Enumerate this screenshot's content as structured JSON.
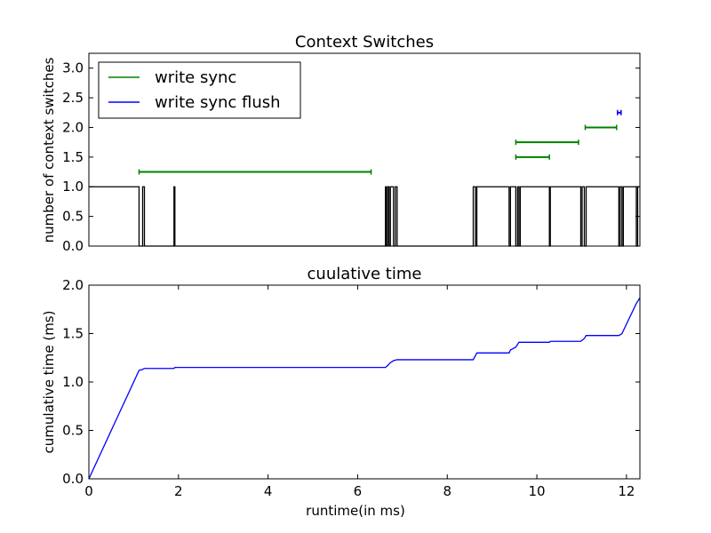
{
  "colors": {
    "step": "#000000",
    "write_sync": "#008000",
    "write_sync_flush": "#0000ff",
    "cumulative": "#0000ff",
    "frame": "#000000",
    "background": "#ffffff"
  },
  "chart_data": [
    {
      "type": "line",
      "title": "Context Switches",
      "xlabel": "",
      "ylabel": "number of context switches",
      "xlim": [
        0,
        12.3
      ],
      "ylim": [
        0,
        3.25
      ],
      "yticks": [
        0.0,
        0.5,
        1.0,
        1.5,
        2.0,
        2.5,
        3.0
      ],
      "ytick_labels": [
        "0.0",
        "0.5",
        "1.0",
        "1.5",
        "2.0",
        "2.5",
        "3.0"
      ],
      "xticks_shown": false,
      "legend_position": "top-left",
      "grid": false,
      "step_series": {
        "x": [
          0,
          1.12,
          1.12,
          1.2,
          1.2,
          1.24,
          1.24,
          1.9,
          1.9,
          1.92,
          1.92,
          6.62,
          6.62,
          6.64,
          6.64,
          6.67,
          6.67,
          6.7,
          6.7,
          6.73,
          6.73,
          6.8,
          6.8,
          6.84,
          6.84,
          6.88,
          6.88,
          8.58,
          8.58,
          8.63,
          8.63,
          8.66,
          8.66,
          9.38,
          9.38,
          9.41,
          9.41,
          9.53,
          9.53,
          9.57,
          9.57,
          9.6,
          9.6,
          9.63,
          9.63,
          10.28,
          10.28,
          10.3,
          10.3,
          10.98,
          10.98,
          11.01,
          11.01,
          11.06,
          11.06,
          11.1,
          11.1,
          11.83,
          11.83,
          11.86,
          11.86,
          11.9,
          11.9,
          11.93,
          11.93,
          12.22,
          12.22,
          12.25,
          12.25,
          12.3
        ],
        "y": [
          1,
          1,
          0,
          0,
          1,
          1,
          0,
          0,
          1,
          1,
          0,
          0,
          1,
          1,
          0,
          0,
          1,
          1,
          0,
          0,
          1,
          1,
          0,
          0,
          1,
          1,
          0,
          0,
          1,
          1,
          0,
          0,
          1,
          1,
          0,
          0,
          1,
          1,
          0,
          0,
          1,
          1,
          0,
          0,
          1,
          1,
          0,
          0,
          1,
          1,
          0,
          0,
          1,
          1,
          0,
          0,
          1,
          1,
          0,
          0,
          1,
          1,
          0,
          0,
          1,
          1,
          0,
          0,
          1,
          1
        ]
      },
      "series": [
        {
          "name": "write sync",
          "kind": "interval",
          "intervals": [
            {
              "start": 1.12,
              "end": 6.3,
              "y": 1.25
            },
            {
              "start": 9.53,
              "end": 10.28,
              "y": 1.5
            },
            {
              "start": 9.53,
              "end": 10.93,
              "y": 1.75
            },
            {
              "start": 11.08,
              "end": 11.78,
              "y": 2.0
            }
          ]
        },
        {
          "name": "write sync flush",
          "kind": "interval",
          "intervals": [
            {
              "start": 11.8,
              "end": 11.88,
              "y": 2.25
            }
          ]
        }
      ]
    },
    {
      "type": "line",
      "title": "cuulative time",
      "xlabel": "runtime(in ms)",
      "ylabel": "cumulative time (ms)",
      "xlim": [
        0,
        12.3
      ],
      "ylim": [
        0,
        2.0
      ],
      "xticks": [
        0,
        2,
        4,
        6,
        8,
        10,
        12
      ],
      "xtick_labels": [
        "0",
        "2",
        "4",
        "6",
        "8",
        "10",
        "12"
      ],
      "yticks": [
        0.0,
        0.5,
        1.0,
        1.5,
        2.0
      ],
      "ytick_labels": [
        "0.0",
        "0.5",
        "1.0",
        "1.5",
        "2.0"
      ],
      "grid": false,
      "series": [
        {
          "x": [
            0,
            1.12,
            1.2,
            1.24,
            1.9,
            1.92,
            6.62,
            6.67,
            6.73,
            6.8,
            6.88,
            8.58,
            8.66,
            9.38,
            9.41,
            9.53,
            9.6,
            10.28,
            10.3,
            10.98,
            11.06,
            11.1,
            11.83,
            11.9,
            11.93,
            12.22,
            12.3
          ],
          "y": [
            0,
            1.12,
            1.13,
            1.14,
            1.14,
            1.15,
            1.15,
            1.17,
            1.2,
            1.22,
            1.23,
            1.23,
            1.3,
            1.3,
            1.33,
            1.36,
            1.41,
            1.41,
            1.42,
            1.42,
            1.45,
            1.48,
            1.48,
            1.5,
            1.53,
            1.81,
            1.87
          ]
        }
      ]
    }
  ]
}
